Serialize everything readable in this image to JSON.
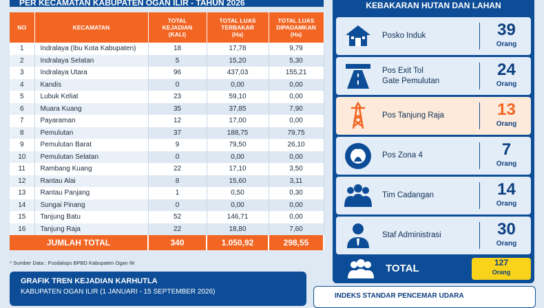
{
  "header": {
    "title": "PER KECAMATAN KABUPATEN OGAN ILIR - TAHUN 2026"
  },
  "table": {
    "columns": [
      "NO",
      "KECAMATAN",
      "TOTAL\nKEJADIAN\n(KALI)",
      "TOTAL LUAS\nTERBAKAR\n(Ha)",
      "TOTAL LUAS\nDIPADAMKAN\n(Ha)"
    ],
    "rows": [
      [
        "1",
        "Indralaya (Ibu Kota Kabupaten)",
        "18",
        "17,78",
        "9,79"
      ],
      [
        "2",
        "Indralaya Selatan",
        "5",
        "15,20",
        "5,30"
      ],
      [
        "3",
        "Indralaya Utara",
        "96",
        "437,03",
        "155,21"
      ],
      [
        "4",
        "Kandis",
        "0",
        "0,00",
        "0,00"
      ],
      [
        "5",
        "Lubuk Keliat",
        "23",
        "59,10",
        "0,00"
      ],
      [
        "6",
        "Muara Kuang",
        "35",
        "37,85",
        "7,90"
      ],
      [
        "7",
        "Payaraman",
        "12",
        "17,00",
        "0,00"
      ],
      [
        "8",
        "Pemulutan",
        "37",
        "188,75",
        "79,75"
      ],
      [
        "9",
        "Pemulutan Barat",
        "9",
        "79,50",
        "26,10"
      ],
      [
        "10",
        "Pemulutan Selatan",
        "0",
        "0,00",
        "0,00"
      ],
      [
        "11",
        "Rambang Kuang",
        "22",
        "17,10",
        "3,50"
      ],
      [
        "12",
        "Rantau Alai",
        "8",
        "15,60",
        "3,11"
      ],
      [
        "13",
        "Rantau Panjang",
        "1",
        "0,50",
        "0,30"
      ],
      [
        "14",
        "Sungai Pinang",
        "0",
        "0,00",
        "0,00"
      ],
      [
        "15",
        "Tanjung Batu",
        "52",
        "146,71",
        "0,00"
      ],
      [
        "16",
        "Tanjung Raja",
        "22",
        "18,80",
        "7,60"
      ]
    ],
    "total": [
      "JUMLAH TOTAL",
      "340",
      "1.050,92",
      "298,55"
    ]
  },
  "source": "* Sumber Data : Pusdalops BPBD Kabupaten Ogan Ilir",
  "chart_box": {
    "title": "GRAFIK TREN KEJADIAN KARHUTLA",
    "subtitle": "KABUPATEN OGAN ILIR (1 JANUARI - 15 SEPTEMBER 2026)"
  },
  "personnel": {
    "title": "KEBAKARAN HUTAN DAN LAHAN",
    "posts": [
      {
        "label": "Posko Induk",
        "count": "39",
        "unit": "Orang"
      },
      {
        "label": "Pos Exit Tol\nGate Pemulutan",
        "count": "24",
        "unit": "Orang"
      },
      {
        "label": "Pos Tanjung Raja",
        "count": "13",
        "unit": "Orang"
      },
      {
        "label": "Pos Zona 4",
        "count": "7",
        "unit": "Orang"
      },
      {
        "label": "Tim Cadangan",
        "count": "14",
        "unit": "Orang"
      },
      {
        "label": "Staf Administrasi",
        "count": "30",
        "unit": "Orang"
      }
    ],
    "total": {
      "label": "TOTAL",
      "count": "127",
      "unit": "Orang"
    }
  },
  "air_quality": {
    "title": "INDEKS STANDAR PENCEMAR UDARA"
  }
}
